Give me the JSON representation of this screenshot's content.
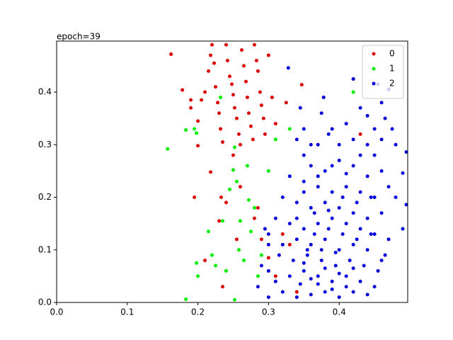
{
  "chart_data": {
    "type": "scatter",
    "title": "epoch=39",
    "xlim": [
      0,
      0.497
    ],
    "ylim": [
      0,
      0.497
    ],
    "xticks": [
      {
        "value": 0,
        "label": "0.0"
      },
      0.1,
      0.2,
      0.3,
      0.4
    ],
    "yticks": [
      {
        "value": 0,
        "label": "0.0"
      },
      0.1,
      0.2,
      0.3,
      0.4
    ],
    "legend": "upper right",
    "series": [
      {
        "name": "0",
        "color": "#dd0000",
        "x": [
          0.162,
          0.178,
          0.19,
          0.19,
          0.2,
          0.205,
          0.21,
          0.215,
          0.218,
          0.22,
          0.223,
          0.225,
          0.228,
          0.23,
          0.232,
          0.235,
          0.24,
          0.242,
          0.245,
          0.248,
          0.25,
          0.252,
          0.255,
          0.258,
          0.26,
          0.262,
          0.265,
          0.268,
          0.27,
          0.272,
          0.275,
          0.278,
          0.28,
          0.283,
          0.285,
          0.288,
          0.29,
          0.293,
          0.295,
          0.3,
          0.305,
          0.31,
          0.325,
          0.347,
          0.42,
          0.195,
          0.2,
          0.218,
          0.233,
          0.24,
          0.25,
          0.23,
          0.21,
          0.235,
          0.26,
          0.28,
          0.29,
          0.3,
          0.285,
          0.32,
          0.33,
          0.31,
          0.34,
          0.255,
          0.43
        ],
        "y": [
          0.472,
          0.404,
          0.385,
          0.37,
          0.345,
          0.385,
          0.4,
          0.44,
          0.47,
          0.49,
          0.455,
          0.41,
          0.38,
          0.36,
          0.33,
          0.305,
          0.49,
          0.46,
          0.43,
          0.415,
          0.395,
          0.37,
          0.35,
          0.32,
          0.3,
          0.48,
          0.45,
          0.42,
          0.39,
          0.36,
          0.335,
          0.31,
          0.49,
          0.46,
          0.44,
          0.4,
          0.375,
          0.35,
          0.32,
          0.47,
          0.39,
          0.34,
          0.38,
          0.414,
          0.425,
          0.2,
          0.298,
          0.248,
          0.2,
          0.19,
          0.28,
          0.155,
          0.08,
          0.03,
          0.22,
          0.16,
          0.12,
          0.085,
          0.18,
          0.13,
          0.11,
          0.05,
          0.02,
          0.12,
          0.32
        ]
      },
      {
        "name": "1",
        "color": "#00ee00",
        "x": [
          0.157,
          0.183,
          0.195,
          0.198,
          0.183,
          0.198,
          0.2,
          0.215,
          0.22,
          0.225,
          0.232,
          0.235,
          0.24,
          0.245,
          0.25,
          0.252,
          0.255,
          0.258,
          0.26,
          0.265,
          0.27,
          0.272,
          0.275,
          0.28,
          0.252,
          0.285,
          0.29,
          0.3,
          0.31,
          0.33,
          0.42
        ],
        "y": [
          0.292,
          0.328,
          0.33,
          0.322,
          0.006,
          0.075,
          0.05,
          0.135,
          0.09,
          0.07,
          0.39,
          0.155,
          0.06,
          0.215,
          0.252,
          0.295,
          0.23,
          0.1,
          0.155,
          0.08,
          0.26,
          0.195,
          0.135,
          0.18,
          0.005,
          0.05,
          0.09,
          0.25,
          0.31,
          0.33,
          0.4
        ]
      },
      {
        "name": "2",
        "color": "#0000dd",
        "x": [
          0.328,
          0.42,
          0.455,
          0.47,
          0.495,
          0.49,
          0.495,
          0.475,
          0.465,
          0.44,
          0.46,
          0.43,
          0.45,
          0.385,
          0.37,
          0.39,
          0.41,
          0.42,
          0.44,
          0.46,
          0.48,
          0.35,
          0.36,
          0.38,
          0.4,
          0.42,
          0.44,
          0.46,
          0.47,
          0.45,
          0.43,
          0.41,
          0.39,
          0.37,
          0.35,
          0.33,
          0.32,
          0.34,
          0.36,
          0.38,
          0.4,
          0.42,
          0.44,
          0.46,
          0.48,
          0.49,
          0.47,
          0.45,
          0.43,
          0.41,
          0.39,
          0.37,
          0.35,
          0.33,
          0.31,
          0.3,
          0.32,
          0.34,
          0.36,
          0.38,
          0.4,
          0.42,
          0.44,
          0.46,
          0.465,
          0.455,
          0.435,
          0.415,
          0.395,
          0.375,
          0.355,
          0.335,
          0.315,
          0.3,
          0.29,
          0.31,
          0.33,
          0.35,
          0.37,
          0.39,
          0.41,
          0.43,
          0.45,
          0.44,
          0.42,
          0.4,
          0.38,
          0.36,
          0.34,
          0.32,
          0.3,
          0.285,
          0.345,
          0.365,
          0.385,
          0.405,
          0.425,
          0.445,
          0.375,
          0.395,
          0.355,
          0.365,
          0.385,
          0.405,
          0.425,
          0.445,
          0.35,
          0.37,
          0.39,
          0.41,
          0.43,
          0.36,
          0.34,
          0.4,
          0.45,
          0.378,
          0.375,
          0.35,
          0.345,
          0.3,
          0.295,
          0.34,
          0.36,
          0.38,
          0.4,
          0.42,
          0.35,
          0.37,
          0.39,
          0.41
        ],
        "y": [
          0.446,
          0.425,
          0.415,
          0.405,
          0.286,
          0.246,
          0.186,
          0.33,
          0.35,
          0.355,
          0.38,
          0.37,
          0.33,
          0.32,
          0.3,
          0.33,
          0.34,
          0.31,
          0.3,
          0.31,
          0.3,
          0.28,
          0.26,
          0.25,
          0.27,
          0.26,
          0.24,
          0.25,
          0.22,
          0.2,
          0.21,
          0.22,
          0.21,
          0.22,
          0.21,
          0.24,
          0.2,
          0.19,
          0.18,
          0.19,
          0.18,
          0.17,
          0.16,
          0.17,
          0.2,
          0.14,
          0.12,
          0.13,
          0.14,
          0.15,
          0.16,
          0.15,
          0.14,
          0.15,
          0.16,
          0.13,
          0.11,
          0.12,
          0.11,
          0.12,
          0.1,
          0.11,
          0.1,
          0.08,
          0.09,
          0.06,
          0.07,
          0.08,
          0.07,
          0.08,
          0.09,
          0.08,
          0.09,
          0.06,
          0.07,
          0.04,
          0.05,
          0.06,
          0.05,
          0.04,
          0.05,
          0.04,
          0.03,
          0.015,
          0.02,
          0.01,
          0.02,
          0.015,
          0.01,
          0.02,
          0.01,
          0.03,
          0.035,
          0.13,
          0.14,
          0.13,
          0.12,
          0.13,
          0.1,
          0.095,
          0.1,
          0.17,
          0.175,
          0.2,
          0.19,
          0.2,
          0.23,
          0.24,
          0.26,
          0.245,
          0.28,
          0.3,
          0.31,
          0.3,
          0.28,
          0.39,
          0.36,
          0.33,
          0.37,
          0.11,
          0.14,
          0.16,
          0.045,
          0.065,
          0.055,
          0.065,
          0.075,
          0.035,
          0.025,
          0.03
        ]
      }
    ]
  }
}
